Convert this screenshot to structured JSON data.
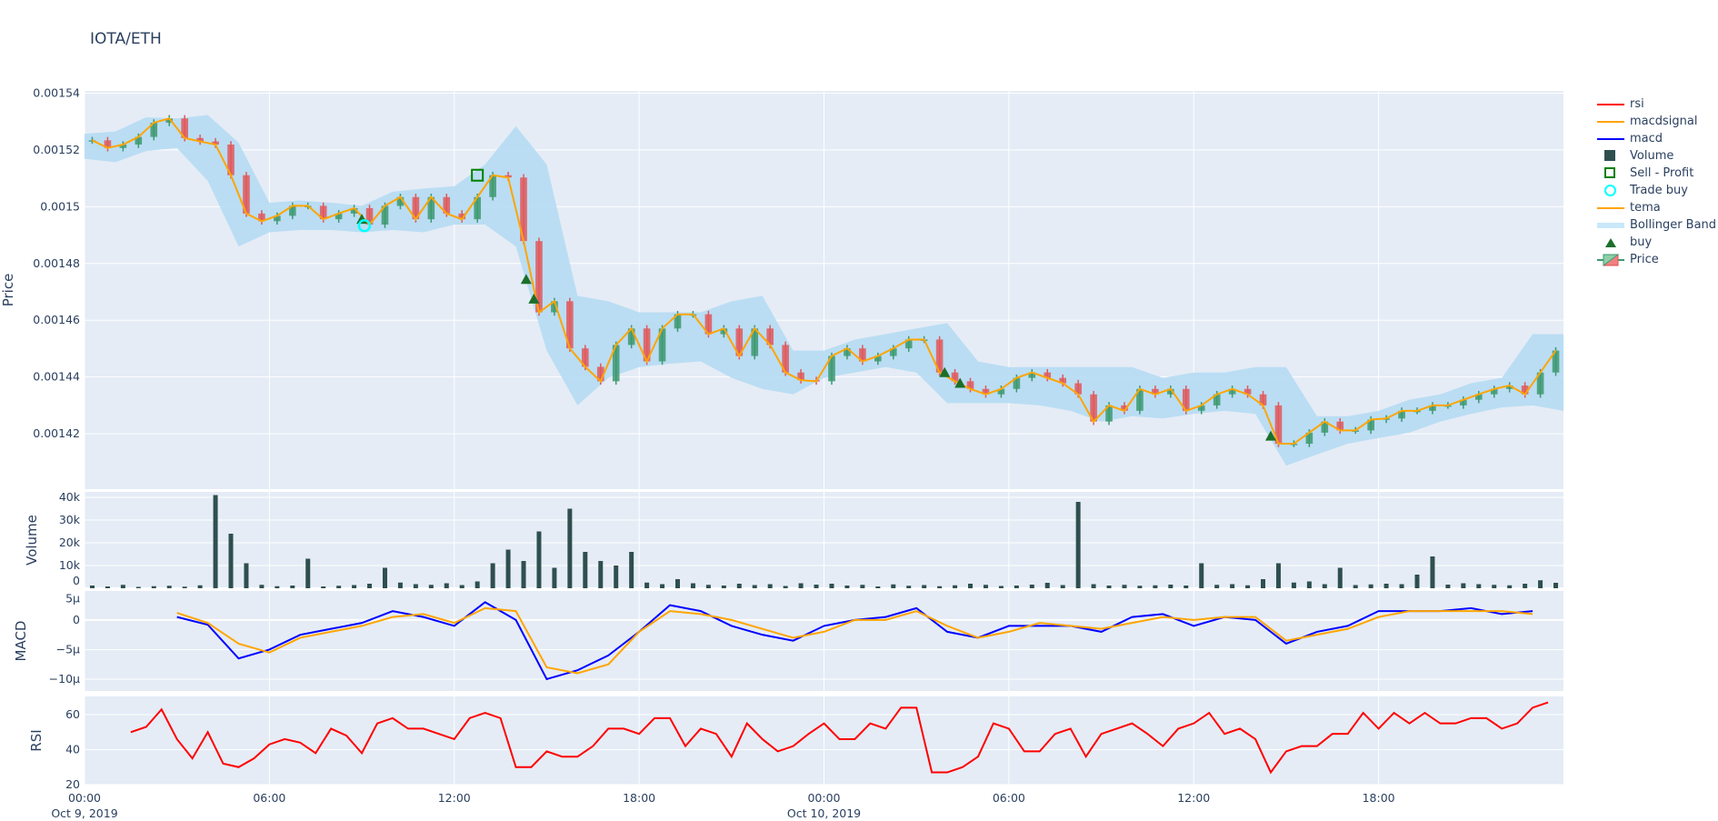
{
  "title": "IOTA/ETH",
  "legend": [
    {
      "label": "rsi",
      "color": "#ff0000",
      "symbol": "line"
    },
    {
      "label": "macdsignal",
      "color": "#ffa500",
      "symbol": "line"
    },
    {
      "label": "macd",
      "color": "#0000ff",
      "symbol": "line"
    },
    {
      "label": "Volume",
      "color": "#2f4f4f",
      "symbol": "square"
    },
    {
      "label": "Sell - Profit",
      "color": "#008000",
      "symbol": "square-open"
    },
    {
      "label": "Trade buy",
      "color": "#00ffff",
      "symbol": "circle-open"
    },
    {
      "label": "tema",
      "color": "#ffa500",
      "symbol": "line"
    },
    {
      "label": "Bollinger Band",
      "color": "#c9e8f9",
      "symbol": "band"
    },
    {
      "label": "buy",
      "color": "#1b6f2a",
      "symbol": "triangle-up"
    },
    {
      "label": "Price",
      "color": "#3d9970",
      "symbol": "candlestick"
    }
  ],
  "chart_data": [
    {
      "type": "candlestick",
      "ylabel": "Price",
      "ylim": [
        0.0014005,
        0.0015408
      ],
      "yticks": [
        "0.00154",
        "0.00152",
        "0.0015",
        "0.00148",
        "0.00146",
        "0.00144",
        "0.00142"
      ],
      "ytick_values": [
        0.00154,
        0.00152,
        0.0015,
        0.00148,
        0.00146,
        0.00144,
        0.00142
      ],
      "grid": true,
      "colors": {
        "increasing": "#3d9970",
        "decreasing": "#e0585b",
        "tema": "#ffa500",
        "band": "#b5dcf3"
      },
      "price": {
        "start": "2019-10-09 00:00",
        "interval_minutes": 30,
        "close": [
          0.0015234,
          0.0015207,
          0.0015219,
          0.0015246,
          0.0015296,
          0.0015311,
          0.0015242,
          0.001523,
          0.0015219,
          0.0015111,
          0.0014976,
          0.0014949,
          0.0014968,
          0.0015003,
          0.0015003,
          0.0014956,
          0.0014976,
          0.0014995,
          0.0014937,
          0.0015003,
          0.0015034,
          0.0014956,
          0.0015034,
          0.0014976,
          0.0014956,
          0.0015034,
          0.0015111,
          0.0015103,
          0.0014879,
          0.0014628,
          0.0014667,
          0.0014501,
          0.0014436,
          0.0014385,
          0.0014513,
          0.0014571,
          0.0014455,
          0.0014571,
          0.0014621,
          0.0014621,
          0.0014551,
          0.0014571,
          0.0014474,
          0.0014571,
          0.0014513,
          0.0014416,
          0.0014389,
          0.0014385,
          0.0014474,
          0.0014501,
          0.0014455,
          0.0014474,
          0.0014501,
          0.0014532,
          0.0014532,
          0.0014416,
          0.0014385,
          0.0014358,
          0.0014339,
          0.0014358,
          0.0014397,
          0.0014416,
          0.0014397,
          0.0014378,
          0.0014339,
          0.0014243,
          0.00143,
          0.0014281,
          0.0014358,
          0.0014339,
          0.0014358,
          0.0014281,
          0.00143,
          0.0014339,
          0.0014358,
          0.0014339,
          0.00143,
          0.0014165,
          0.0014165,
          0.0014204,
          0.0014243,
          0.0014212,
          0.0014212,
          0.001425,
          0.0014254,
          0.0014281,
          0.0014281,
          0.00143,
          0.00143,
          0.001432,
          0.0014339,
          0.0014358,
          0.001437,
          0.0014339,
          0.0014416,
          0.0014493
        ]
      },
      "bollinger": {
        "start": "2019-10-09 00:00",
        "interval_minutes": 60,
        "upper": [
          0.0015257,
          0.0015265,
          0.0015315,
          0.0015311,
          0.0015323,
          0.0015226,
          0.0015014,
          0.0015022,
          0.0015014,
          0.0015003,
          0.0015053,
          0.0015064,
          0.0015072,
          0.0015149,
          0.0015284,
          0.0015149,
          0.0014686,
          0.0014667,
          0.0014628,
          0.0014628,
          0.0014628,
          0.0014667,
          0.0014686,
          0.0014493,
          0.0014493,
          0.0014532,
          0.0014551,
          0.0014571,
          0.001459,
          0.0014455,
          0.0014435,
          0.0014435,
          0.0014435,
          0.0014435,
          0.0014435,
          0.0014397,
          0.0014416,
          0.0014416,
          0.0014435,
          0.0014435,
          0.0014262,
          0.0014262,
          0.0014281,
          0.001432,
          0.0014339,
          0.0014378,
          0.0014397,
          0.0014551,
          0.0014551
        ],
        "lower": [
          0.0015169,
          0.0015157,
          0.0015196,
          0.0015207,
          0.0015091,
          0.001486,
          0.001491,
          0.0014918,
          0.0014918,
          0.001491,
          0.0014918,
          0.001491,
          0.0014937,
          0.0014937,
          0.001486,
          0.0014493,
          0.00143,
          0.0014397,
          0.0014435,
          0.0014447,
          0.0014455,
          0.0014397,
          0.0014358,
          0.0014339,
          0.0014397,
          0.0014416,
          0.0014435,
          0.0014416,
          0.0014308,
          0.0014308,
          0.0014308,
          0.00143,
          0.0014281,
          0.0014243,
          0.0014262,
          0.0014254,
          0.001427,
          0.0014281,
          0.001427,
          0.0014088,
          0.0014127,
          0.0014165,
          0.0014185,
          0.0014204,
          0.0014243,
          0.001427,
          0.0014293,
          0.00143,
          0.0014281
        ]
      },
      "buy": [
        {
          "time": "2019-10-09 09:00",
          "price": 0.0014956
        },
        {
          "time": "2019-10-09 14:20",
          "price": 0.0014744
        },
        {
          "time": "2019-10-09 14:35",
          "price": 0.0014675
        },
        {
          "time": "2019-10-10 03:55",
          "price": 0.0014416
        },
        {
          "time": "2019-10-10 04:25",
          "price": 0.0014378
        },
        {
          "time": "2019-10-10 14:30",
          "price": 0.0014192
        }
      ],
      "trade_buy": [
        {
          "time": "2019-10-09 09:05",
          "price": 0.0014933
        }
      ],
      "sell_profit": [
        {
          "time": "2019-10-09 12:45",
          "price": 0.0015111
        }
      ]
    },
    {
      "type": "bar",
      "ylabel": "Volume",
      "ylim": [
        0,
        42400
      ],
      "yticks": [
        "0",
        "10k",
        "20k",
        "30k",
        "40k"
      ],
      "ytick_values": [
        0,
        10000,
        20000,
        30000,
        40000
      ],
      "color": "#2f4f4f",
      "start": "2019-10-09 00:00",
      "interval_minutes": 30,
      "values": [
        1200,
        800,
        1500,
        600,
        900,
        1100,
        700,
        1300,
        41000,
        24000,
        11000,
        1500,
        900,
        1200,
        13000,
        800,
        1100,
        1400,
        2000,
        9000,
        2500,
        1800,
        1500,
        2200,
        1400,
        3000,
        11000,
        17000,
        12000,
        25000,
        9000,
        35000,
        16000,
        12000,
        10000,
        16000,
        2500,
        1800,
        4000,
        2200,
        1500,
        1200,
        2000,
        1400,
        1800,
        1000,
        2200,
        1600,
        2000,
        1200,
        1500,
        800,
        1700,
        1100,
        1400,
        900,
        1300,
        2000,
        1500,
        1000,
        1200,
        1600,
        2400,
        1400,
        38000,
        1800,
        1200,
        1500,
        1100,
        1300,
        1600,
        1200,
        11000,
        1500,
        1800,
        1300,
        4000,
        11000,
        2500,
        3000,
        1800,
        9000,
        1400,
        1700,
        2000,
        1800,
        6000,
        14000,
        1600,
        2200,
        1800,
        1500,
        1300,
        2000,
        3500,
        2400
      ]
    },
    {
      "type": "line",
      "ylabel": "MACD",
      "ylim": [
        -1.2e-05,
        4.9e-06
      ],
      "yticks": [
        "5µ",
        "0",
        "−5µ",
        "−10µ"
      ],
      "ytick_values": [
        5e-06,
        0,
        -5e-06,
        -1e-05
      ],
      "start": "2019-10-09 03:00",
      "interval_minutes": 60,
      "series": [
        {
          "name": "macd",
          "color": "#0000ff",
          "values": [
            5e-07,
            -8e-07,
            -6.5e-06,
            -5e-06,
            -2.5e-06,
            -1.5e-06,
            -5e-07,
            1.5e-06,
            5e-07,
            -1e-06,
            3e-06,
            0,
            -1e-05,
            -8.5e-06,
            -6e-06,
            -2e-06,
            2.5e-06,
            1.5e-06,
            -1e-06,
            -2.5e-06,
            -3.5e-06,
            -1e-06,
            0,
            5e-07,
            2e-06,
            -2e-06,
            -3e-06,
            -1e-06,
            -1e-06,
            -1e-06,
            -2e-06,
            5e-07,
            1e-06,
            -1e-06,
            5e-07,
            0,
            -4e-06,
            -2e-06,
            -1e-06,
            1.5e-06,
            1.5e-06,
            1.5e-06,
            2e-06,
            1e-06,
            1.5e-06
          ]
        },
        {
          "name": "macdsignal",
          "color": "#ffa500",
          "values": [
            1.2e-06,
            -5e-07,
            -4e-06,
            -5.5e-06,
            -3e-06,
            -2e-06,
            -1e-06,
            5e-07,
            1e-06,
            -5e-07,
            2e-06,
            1.5e-06,
            -8e-06,
            -9e-06,
            -7.5e-06,
            -2e-06,
            1.5e-06,
            1e-06,
            0,
            -1.5e-06,
            -3e-06,
            -2e-06,
            0,
            0,
            1.5e-06,
            -1e-06,
            -3e-06,
            -2e-06,
            -5e-07,
            -1e-06,
            -1.5e-06,
            -5e-07,
            5e-07,
            0,
            5e-07,
            5e-07,
            -3.5e-06,
            -2.5e-06,
            -1.5e-06,
            5e-07,
            1.5e-06,
            1.5e-06,
            1.5e-06,
            1.5e-06,
            1e-06
          ]
        }
      ]
    },
    {
      "type": "line",
      "ylabel": "RSI",
      "ylim": [
        20,
        70.4
      ],
      "yticks": [
        "20",
        "40",
        "60"
      ],
      "ytick_values": [
        20,
        40,
        60
      ],
      "start": "2019-10-09 01:30",
      "interval_minutes": 30,
      "series": [
        {
          "name": "rsi",
          "color": "#ff0000",
          "values": [
            50,
            53,
            63,
            46,
            35,
            50,
            32,
            30,
            35,
            43,
            46,
            44,
            38,
            52,
            48,
            38,
            55,
            58,
            52,
            52,
            49,
            46,
            58,
            61,
            58,
            30,
            30,
            39,
            36,
            36,
            42,
            52,
            52,
            49,
            58,
            58,
            42,
            52,
            49,
            36,
            55,
            46,
            39,
            42,
            49,
            55,
            46,
            46,
            55,
            52,
            64,
            64,
            27,
            27,
            30,
            36,
            55,
            52,
            39,
            39,
            49,
            52,
            36,
            49,
            52,
            55,
            49,
            42,
            52,
            55,
            61,
            49,
            52,
            46,
            27,
            39,
            42,
            42,
            49,
            49,
            61,
            52,
            61,
            55,
            61,
            55,
            55,
            58,
            58,
            52,
            55,
            64,
            67
          ]
        }
      ]
    }
  ],
  "xaxis": {
    "range": [
      "2019-10-09 00:00",
      "2019-10-11 00:00"
    ],
    "ticks": [
      {
        "time": "2019-10-09 00:00",
        "label": "00:00",
        "sub": "Oct 9, 2019"
      },
      {
        "time": "2019-10-09 06:00",
        "label": "06:00",
        "sub": ""
      },
      {
        "time": "2019-10-09 12:00",
        "label": "12:00",
        "sub": ""
      },
      {
        "time": "2019-10-09 18:00",
        "label": "18:00",
        "sub": ""
      },
      {
        "time": "2019-10-10 00:00",
        "label": "00:00",
        "sub": "Oct 10, 2019"
      },
      {
        "time": "2019-10-10 06:00",
        "label": "06:00",
        "sub": ""
      },
      {
        "time": "2019-10-10 12:00",
        "label": "12:00",
        "sub": ""
      },
      {
        "time": "2019-10-10 18:00",
        "label": "18:00",
        "sub": ""
      }
    ]
  }
}
